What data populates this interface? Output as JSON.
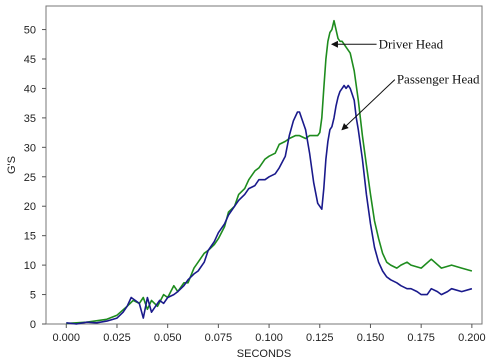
{
  "chart_data": {
    "type": "line",
    "title": "",
    "xlabel": "SECONDS",
    "ylabel": "G'S",
    "xlim": [
      -0.01,
      0.205
    ],
    "ylim": [
      0,
      54
    ],
    "x_ticks": [
      "0.000",
      "0.025",
      "0.050",
      "0.075",
      "0.100",
      "0.125",
      "0.150",
      "0.175",
      "0.200"
    ],
    "y_ticks": [
      "0",
      "5",
      "10",
      "15",
      "20",
      "25",
      "30",
      "35",
      "40",
      "45",
      "50"
    ],
    "grid": false,
    "legend": "none",
    "series": [
      {
        "name": "Driver Head",
        "color": "#1e8c1e",
        "x": [
          0.0,
          0.01,
          0.02,
          0.025,
          0.03,
          0.033,
          0.036,
          0.038,
          0.04,
          0.042,
          0.045,
          0.048,
          0.05,
          0.053,
          0.055,
          0.058,
          0.06,
          0.063,
          0.065,
          0.068,
          0.07,
          0.073,
          0.075,
          0.078,
          0.08,
          0.083,
          0.085,
          0.088,
          0.09,
          0.093,
          0.095,
          0.098,
          0.1,
          0.103,
          0.105,
          0.108,
          0.11,
          0.113,
          0.115,
          0.118,
          0.12,
          0.122,
          0.124,
          0.125,
          0.126,
          0.127,
          0.128,
          0.129,
          0.13,
          0.131,
          0.132,
          0.133,
          0.134,
          0.135,
          0.136,
          0.138,
          0.14,
          0.142,
          0.144,
          0.146,
          0.148,
          0.15,
          0.152,
          0.154,
          0.156,
          0.158,
          0.16,
          0.163,
          0.165,
          0.168,
          0.17,
          0.175,
          0.18,
          0.185,
          0.19,
          0.195,
          0.2
        ],
        "values": [
          0.1,
          0.3,
          0.8,
          1.5,
          3.0,
          4.0,
          3.5,
          4.5,
          2.5,
          4.0,
          3.0,
          5.0,
          4.5,
          6.5,
          5.5,
          7.0,
          7.0,
          9.5,
          10.5,
          12.0,
          12.5,
          13.5,
          14.5,
          16.5,
          19.0,
          20.0,
          22.0,
          23.0,
          24.5,
          26.0,
          26.5,
          28.0,
          28.5,
          29.0,
          30.5,
          31.0,
          31.5,
          32.0,
          32.0,
          31.5,
          32.0,
          32.0,
          32.0,
          32.5,
          35.0,
          40.0,
          45.0,
          48.0,
          49.5,
          50.0,
          51.5,
          50.0,
          48.5,
          48.0,
          48.0,
          47.0,
          46.0,
          43.0,
          38.0,
          32.0,
          27.0,
          22.0,
          17.5,
          14.5,
          12.0,
          10.5,
          10.0,
          9.5,
          10.0,
          10.5,
          10.0,
          9.5,
          11.0,
          9.5,
          10.0,
          9.5,
          9.0
        ]
      },
      {
        "name": "Passenger Head",
        "color": "#1a1a8c",
        "x": [
          0.0,
          0.005,
          0.01,
          0.015,
          0.02,
          0.025,
          0.028,
          0.03,
          0.032,
          0.034,
          0.036,
          0.038,
          0.04,
          0.042,
          0.044,
          0.046,
          0.048,
          0.05,
          0.053,
          0.055,
          0.058,
          0.06,
          0.063,
          0.065,
          0.068,
          0.07,
          0.073,
          0.075,
          0.078,
          0.08,
          0.083,
          0.085,
          0.088,
          0.09,
          0.093,
          0.095,
          0.098,
          0.1,
          0.103,
          0.105,
          0.108,
          0.11,
          0.112,
          0.114,
          0.115,
          0.116,
          0.118,
          0.12,
          0.122,
          0.124,
          0.126,
          0.127,
          0.128,
          0.129,
          0.13,
          0.131,
          0.132,
          0.133,
          0.134,
          0.135,
          0.136,
          0.137,
          0.138,
          0.139,
          0.14,
          0.141,
          0.142,
          0.143,
          0.144,
          0.146,
          0.148,
          0.15,
          0.152,
          0.154,
          0.156,
          0.158,
          0.16,
          0.163,
          0.165,
          0.168,
          0.17,
          0.173,
          0.175,
          0.178,
          0.18,
          0.183,
          0.185,
          0.188,
          0.19,
          0.195,
          0.2
        ],
        "values": [
          0.2,
          0.0,
          0.3,
          0.2,
          0.5,
          1.0,
          2.0,
          3.0,
          4.5,
          4.0,
          3.5,
          1.0,
          4.5,
          2.0,
          3.0,
          4.0,
          3.5,
          4.5,
          5.0,
          5.5,
          6.5,
          7.5,
          8.5,
          9.0,
          10.5,
          12.5,
          14.0,
          15.5,
          17.0,
          18.5,
          20.0,
          21.0,
          22.0,
          23.0,
          23.5,
          24.5,
          24.5,
          25.0,
          25.5,
          26.5,
          28.5,
          32.0,
          34.5,
          36.0,
          36.0,
          35.0,
          33.0,
          29.0,
          24.0,
          20.5,
          19.5,
          23.0,
          28.0,
          31.0,
          33.0,
          33.5,
          35.0,
          37.0,
          38.5,
          39.5,
          40.0,
          40.5,
          40.0,
          40.5,
          40.0,
          39.0,
          38.0,
          35.0,
          33.0,
          28.0,
          22.0,
          17.0,
          13.0,
          10.5,
          9.0,
          8.0,
          7.5,
          7.0,
          6.5,
          6.0,
          6.0,
          5.5,
          5.0,
          5.0,
          6.0,
          5.5,
          5.0,
          5.5,
          6.0,
          5.5,
          6.0
        ]
      }
    ],
    "annotations": [
      {
        "text": "Driver Head",
        "series": "Driver Head",
        "x": 0.131,
        "y": 47.5,
        "label_x": 0.154,
        "label_y": 47.5
      },
      {
        "text": "Passenger Head",
        "series": "Passenger Head",
        "x": 0.136,
        "y": 33.0,
        "label_x": 0.163,
        "label_y": 41.5
      }
    ]
  }
}
